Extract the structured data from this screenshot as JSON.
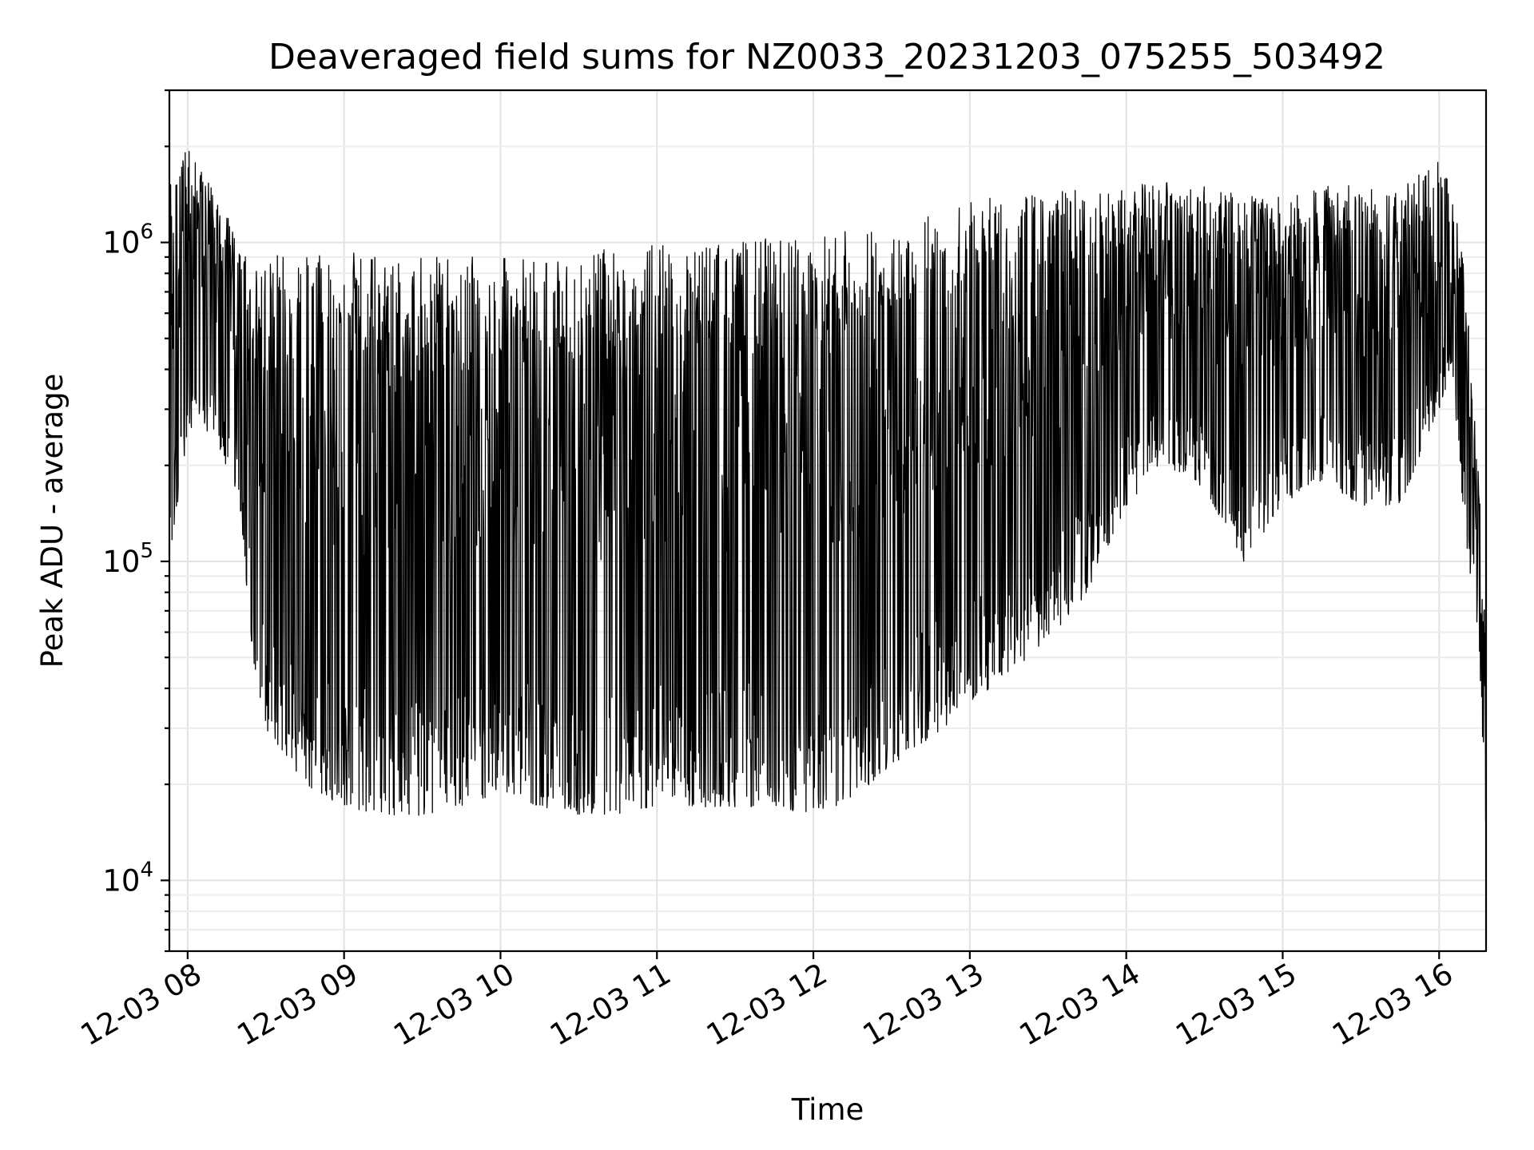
{
  "chart_data": {
    "type": "line",
    "title": "Deaveraged field sums for NZ0033_20231203_075255_503492",
    "xlabel": "Time",
    "ylabel": "Peak ADU - average",
    "yscale": "log",
    "ylim": [
      6000,
      3000000
    ],
    "xlim": [
      "2023-12-03 07:53",
      "2023-12-03 16:18"
    ],
    "grid": true,
    "legend": "none",
    "line_color": "#000000",
    "x_ticks": [
      {
        "label": "12-03 08",
        "value": "2023-12-03 08:00"
      },
      {
        "label": "12-03 09",
        "value": "2023-12-03 09:00"
      },
      {
        "label": "12-03 10",
        "value": "2023-12-03 10:00"
      },
      {
        "label": "12-03 11",
        "value": "2023-12-03 11:00"
      },
      {
        "label": "12-03 12",
        "value": "2023-12-03 12:00"
      },
      {
        "label": "12-03 13",
        "value": "2023-12-03 13:00"
      },
      {
        "label": "12-03 14",
        "value": "2023-12-03 14:00"
      },
      {
        "label": "12-03 15",
        "value": "2023-12-03 15:00"
      },
      {
        "label": "12-03 16",
        "value": "2023-12-03 16:00"
      }
    ],
    "y_ticks": [
      {
        "base": "10",
        "exp": "4",
        "value": 10000
      },
      {
        "base": "10",
        "exp": "5",
        "value": 100000
      },
      {
        "base": "10",
        "exp": "6",
        "value": 1000000
      }
    ],
    "series": [
      {
        "x": [
          "2023-12-03 07:53",
          "2023-12-03 08:00",
          "2023-12-03 08:10",
          "2023-12-03 08:20",
          "2023-12-03 08:25",
          "2023-12-03 08:30",
          "2023-12-03 08:45",
          "2023-12-03 09:00",
          "2023-12-03 09:15",
          "2023-12-03 09:30",
          "2023-12-03 09:45",
          "2023-12-03 10:00",
          "2023-12-03 10:15",
          "2023-12-03 10:30",
          "2023-12-03 10:45",
          "2023-12-03 11:00",
          "2023-12-03 11:15",
          "2023-12-03 11:30",
          "2023-12-03 11:45",
          "2023-12-03 12:00",
          "2023-12-03 12:15",
          "2023-12-03 12:30",
          "2023-12-03 12:45",
          "2023-12-03 13:00",
          "2023-12-03 13:15",
          "2023-12-03 13:30",
          "2023-12-03 13:45",
          "2023-12-03 14:00",
          "2023-12-03 14:15",
          "2023-12-03 14:30",
          "2023-12-03 14:45",
          "2023-12-03 15:00",
          "2023-12-03 15:15",
          "2023-12-03 15:30",
          "2023-12-03 15:45",
          "2023-12-03 16:00",
          "2023-12-03 16:05",
          "2023-12-03 16:10",
          "2023-12-03 16:15",
          "2023-12-03 16:18"
        ],
        "low": [
          100000,
          250000,
          250000,
          150000,
          50000,
          30000,
          20000,
          17000,
          16000,
          16000,
          17000,
          19000,
          17000,
          16000,
          16000,
          17000,
          17000,
          17000,
          17000,
          16000,
          18000,
          23000,
          28000,
          35000,
          45000,
          55000,
          80000,
          150000,
          200000,
          170000,
          100000,
          150000,
          180000,
          150000,
          150000,
          300000,
          400000,
          120000,
          60000,
          12000
        ],
        "high": [
          1500000,
          2000000,
          1500000,
          1000000,
          800000,
          950000,
          900000,
          950000,
          900000,
          900000,
          900000,
          900000,
          900000,
          950000,
          950000,
          1000000,
          1000000,
          1000000,
          1050000,
          1050000,
          1100000,
          1150000,
          1250000,
          1350000,
          1400000,
          1450000,
          1500000,
          1500000,
          1550000,
          1500000,
          1400000,
          1450000,
          1500000,
          1550000,
          1500000,
          1800000,
          1500000,
          800000,
          200000,
          60000
        ]
      }
    ]
  }
}
